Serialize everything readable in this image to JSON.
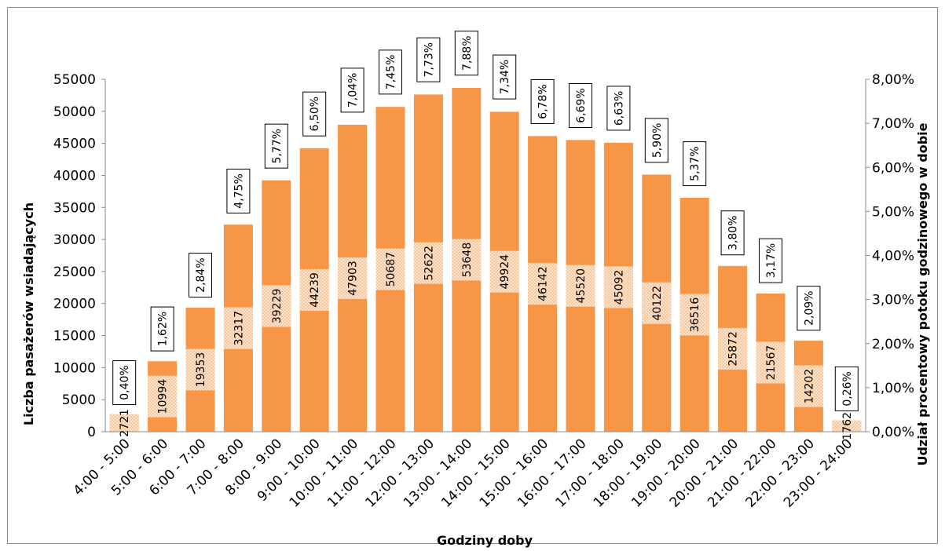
{
  "chart_data": {
    "type": "bar",
    "title": "",
    "xlabel": "Godziny doby",
    "ylabel": "Liczba pasażerów wsiadających",
    "y2label": "Udział procentowy potoku godzinowego w dobie",
    "ylim": [
      0,
      55000
    ],
    "y2lim": [
      0,
      0.08
    ],
    "yticks": [
      "0",
      "5000",
      "10000",
      "15000",
      "20000",
      "25000",
      "30000",
      "35000",
      "40000",
      "45000",
      "50000",
      "55000"
    ],
    "y2ticks": [
      "0,00%",
      "1,00%",
      "2,00%",
      "3,00%",
      "4,00%",
      "5,00%",
      "6,00%",
      "7,00%",
      "8,00%"
    ],
    "grid": false,
    "legend": "none",
    "categories": [
      "4:00 - 5:00",
      "5:00 - 6:00",
      "6:00 - 7:00",
      "7:00 - 8:00",
      "8:00 - 9:00",
      "9:00 - 10:00",
      "10:00 - 11:00",
      "11:00 - 12:00",
      "12:00 - 13:00",
      "13:00 - 14:00",
      "14:00 - 15:00",
      "15:00 - 16:00",
      "16:00 - 17:00",
      "17:00 - 18:00",
      "18:00 - 19:00",
      "19:00 - 20:00",
      "20:00 - 21:00",
      "21:00 - 22:00",
      "22:00 - 23:00",
      "23:00 - 24:00"
    ],
    "values": [
      2721,
      10994,
      19353,
      32317,
      39229,
      44239,
      47903,
      50687,
      52622,
      53648,
      49924,
      46142,
      45520,
      45092,
      40122,
      36516,
      25872,
      21567,
      14202,
      1762
    ],
    "value_labels": [
      "2721",
      "10994",
      "19353",
      "32317",
      "39229",
      "44239",
      "47903",
      "50687",
      "52622",
      "53648",
      "49924",
      "46142",
      "45520",
      "45092",
      "40122",
      "36516",
      "25872",
      "21567",
      "14202",
      "1762"
    ],
    "shares": [
      0.004,
      0.0162,
      0.0284,
      0.0475,
      0.0577,
      0.065,
      0.0704,
      0.0745,
      0.0773,
      0.0788,
      0.0734,
      0.0678,
      0.0669,
      0.0663,
      0.059,
      0.0537,
      0.038,
      0.0317,
      0.0209,
      0.0026
    ],
    "share_labels": [
      "0,40%",
      "1,62%",
      "2,84%",
      "4,75%",
      "5,77%",
      "6,50%",
      "7,04%",
      "7,45%",
      "7,73%",
      "7,88%",
      "7,34%",
      "6,78%",
      "6,69%",
      "6,63%",
      "5,90%",
      "5,37%",
      "3,80%",
      "3,17%",
      "2,09%",
      "0,26%"
    ],
    "colors": {
      "bar": "#f79646",
      "bar_band": "#fcdcc0",
      "text": "#000000",
      "axis": "#8c8c8c"
    }
  }
}
